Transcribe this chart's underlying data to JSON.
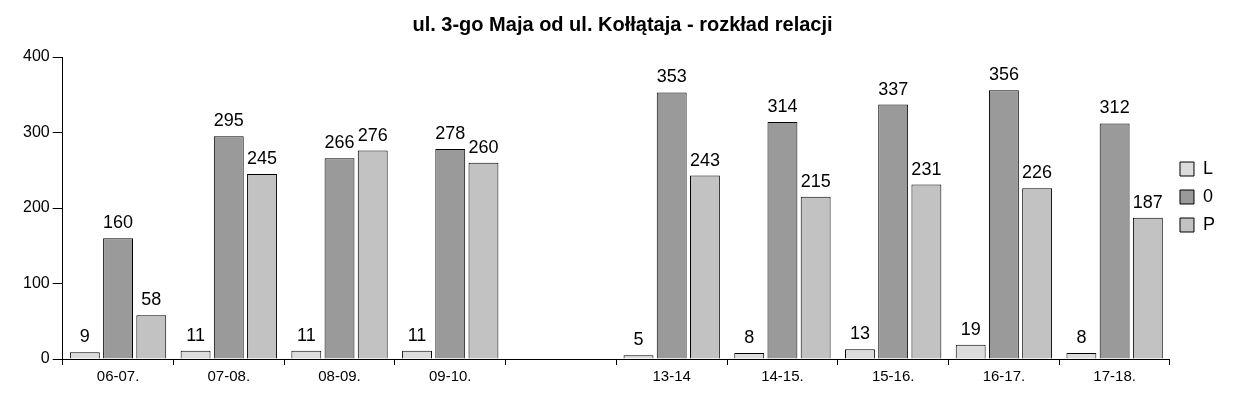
{
  "chart_data": {
    "type": "bar",
    "title": "ul. 3-go Maja od ul. Kołłątaja - rozkład relacji",
    "categories": [
      "06-07.",
      "07-08.",
      "08-09.",
      "09-10.",
      null,
      "13-14",
      "14-15.",
      "15-16.",
      "16-17.",
      "17-18."
    ],
    "series": [
      {
        "name": "L",
        "color": "#dcdcdc",
        "values": [
          9,
          11,
          11,
          11,
          null,
          5,
          8,
          13,
          19,
          8
        ]
      },
      {
        "name": "0",
        "color": "#9a9a9a",
        "values": [
          160,
          295,
          266,
          278,
          null,
          353,
          314,
          337,
          356,
          312
        ]
      },
      {
        "name": "P",
        "color": "#c2c2c2",
        "values": [
          58,
          245,
          276,
          260,
          null,
          243,
          215,
          231,
          226,
          187
        ]
      }
    ],
    "ylim": [
      0,
      400
    ],
    "yticks": [
      0,
      100,
      200,
      300,
      400
    ],
    "grid": false,
    "legend": "right",
    "data_labels": true
  }
}
